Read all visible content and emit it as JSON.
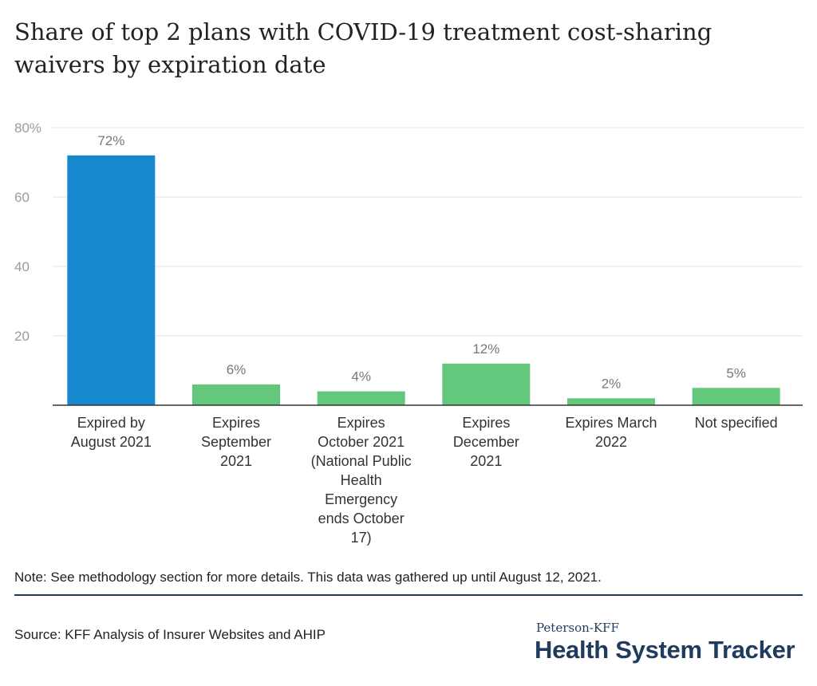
{
  "title": "Share of top 2 plans with COVID-19 treatment cost-sharing waivers by expiration date",
  "note": "Note: See methodology section for more details. This data was gathered up until August 12, 2021.",
  "source": "Source: KFF Analysis of Insurer Websites and AHIP",
  "brand": {
    "small": "Peterson-KFF",
    "big": "Health System Tracker"
  },
  "colors": {
    "highlight": "#1689ce",
    "bar": "#63c77c",
    "grid": "#e3e3e3",
    "axis": "#333333",
    "tick_text": "#9b9b9b",
    "label_text": "#777777",
    "brand": "#1f3b5e"
  },
  "chart_data": {
    "type": "bar",
    "title": "Share of top 2 plans with COVID-19 treatment cost-sharing waivers by expiration date",
    "categories": [
      [
        "Expired by",
        "August 2021"
      ],
      [
        "Expires",
        "September",
        "2021"
      ],
      [
        "Expires",
        "October 2021",
        "(National Public",
        "Health",
        "Emergency",
        "ends October",
        "17)"
      ],
      [
        "Expires",
        "December",
        "2021"
      ],
      [
        "Expires March",
        "2022"
      ],
      [
        "Not specified"
      ]
    ],
    "values": [
      72,
      6,
      4,
      12,
      2,
      5
    ],
    "data_labels": [
      "72%",
      "6%",
      "4%",
      "12%",
      "2%",
      "5%"
    ],
    "highlight_index": 0,
    "ylim": [
      0,
      80
    ],
    "yticks": [
      20,
      40,
      60,
      80
    ],
    "ytick_labels": [
      "20",
      "40",
      "60",
      "80%"
    ],
    "grid": true,
    "legend": "none"
  }
}
